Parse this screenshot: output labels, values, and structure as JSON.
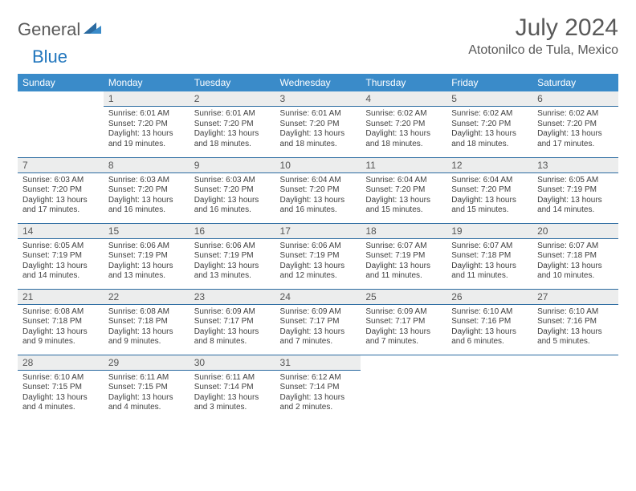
{
  "brand": {
    "general": "General",
    "blue": "Blue"
  },
  "title": "July 2024",
  "location": "Atotonilco de Tula, Mexico",
  "colors": {
    "header_bg": "#3a8bc9",
    "header_text": "#ffffff",
    "band_bg": "#eceded",
    "rule": "#2a6aa0",
    "title_text": "#595959",
    "body_text": "#404040",
    "logo_gray": "#595959",
    "logo_blue": "#2176bd"
  },
  "weekdays": [
    "Sunday",
    "Monday",
    "Tuesday",
    "Wednesday",
    "Thursday",
    "Friday",
    "Saturday"
  ],
  "weeks": [
    [
      {
        "n": "",
        "sr": "",
        "ss": "",
        "dl": ""
      },
      {
        "n": "1",
        "sr": "6:01 AM",
        "ss": "7:20 PM",
        "dl": "13 hours and 19 minutes."
      },
      {
        "n": "2",
        "sr": "6:01 AM",
        "ss": "7:20 PM",
        "dl": "13 hours and 18 minutes."
      },
      {
        "n": "3",
        "sr": "6:01 AM",
        "ss": "7:20 PM",
        "dl": "13 hours and 18 minutes."
      },
      {
        "n": "4",
        "sr": "6:02 AM",
        "ss": "7:20 PM",
        "dl": "13 hours and 18 minutes."
      },
      {
        "n": "5",
        "sr": "6:02 AM",
        "ss": "7:20 PM",
        "dl": "13 hours and 18 minutes."
      },
      {
        "n": "6",
        "sr": "6:02 AM",
        "ss": "7:20 PM",
        "dl": "13 hours and 17 minutes."
      }
    ],
    [
      {
        "n": "7",
        "sr": "6:03 AM",
        "ss": "7:20 PM",
        "dl": "13 hours and 17 minutes."
      },
      {
        "n": "8",
        "sr": "6:03 AM",
        "ss": "7:20 PM",
        "dl": "13 hours and 16 minutes."
      },
      {
        "n": "9",
        "sr": "6:03 AM",
        "ss": "7:20 PM",
        "dl": "13 hours and 16 minutes."
      },
      {
        "n": "10",
        "sr": "6:04 AM",
        "ss": "7:20 PM",
        "dl": "13 hours and 16 minutes."
      },
      {
        "n": "11",
        "sr": "6:04 AM",
        "ss": "7:20 PM",
        "dl": "13 hours and 15 minutes."
      },
      {
        "n": "12",
        "sr": "6:04 AM",
        "ss": "7:20 PM",
        "dl": "13 hours and 15 minutes."
      },
      {
        "n": "13",
        "sr": "6:05 AM",
        "ss": "7:19 PM",
        "dl": "13 hours and 14 minutes."
      }
    ],
    [
      {
        "n": "14",
        "sr": "6:05 AM",
        "ss": "7:19 PM",
        "dl": "13 hours and 14 minutes."
      },
      {
        "n": "15",
        "sr": "6:06 AM",
        "ss": "7:19 PM",
        "dl": "13 hours and 13 minutes."
      },
      {
        "n": "16",
        "sr": "6:06 AM",
        "ss": "7:19 PM",
        "dl": "13 hours and 13 minutes."
      },
      {
        "n": "17",
        "sr": "6:06 AM",
        "ss": "7:19 PM",
        "dl": "13 hours and 12 minutes."
      },
      {
        "n": "18",
        "sr": "6:07 AM",
        "ss": "7:19 PM",
        "dl": "13 hours and 11 minutes."
      },
      {
        "n": "19",
        "sr": "6:07 AM",
        "ss": "7:18 PM",
        "dl": "13 hours and 11 minutes."
      },
      {
        "n": "20",
        "sr": "6:07 AM",
        "ss": "7:18 PM",
        "dl": "13 hours and 10 minutes."
      }
    ],
    [
      {
        "n": "21",
        "sr": "6:08 AM",
        "ss": "7:18 PM",
        "dl": "13 hours and 9 minutes."
      },
      {
        "n": "22",
        "sr": "6:08 AM",
        "ss": "7:18 PM",
        "dl": "13 hours and 9 minutes."
      },
      {
        "n": "23",
        "sr": "6:09 AM",
        "ss": "7:17 PM",
        "dl": "13 hours and 8 minutes."
      },
      {
        "n": "24",
        "sr": "6:09 AM",
        "ss": "7:17 PM",
        "dl": "13 hours and 7 minutes."
      },
      {
        "n": "25",
        "sr": "6:09 AM",
        "ss": "7:17 PM",
        "dl": "13 hours and 7 minutes."
      },
      {
        "n": "26",
        "sr": "6:10 AM",
        "ss": "7:16 PM",
        "dl": "13 hours and 6 minutes."
      },
      {
        "n": "27",
        "sr": "6:10 AM",
        "ss": "7:16 PM",
        "dl": "13 hours and 5 minutes."
      }
    ],
    [
      {
        "n": "28",
        "sr": "6:10 AM",
        "ss": "7:15 PM",
        "dl": "13 hours and 4 minutes."
      },
      {
        "n": "29",
        "sr": "6:11 AM",
        "ss": "7:15 PM",
        "dl": "13 hours and 4 minutes."
      },
      {
        "n": "30",
        "sr": "6:11 AM",
        "ss": "7:14 PM",
        "dl": "13 hours and 3 minutes."
      },
      {
        "n": "31",
        "sr": "6:12 AM",
        "ss": "7:14 PM",
        "dl": "13 hours and 2 minutes."
      },
      {
        "n": "",
        "sr": "",
        "ss": "",
        "dl": ""
      },
      {
        "n": "",
        "sr": "",
        "ss": "",
        "dl": ""
      },
      {
        "n": "",
        "sr": "",
        "ss": "",
        "dl": ""
      }
    ]
  ],
  "labels": {
    "sunrise": "Sunrise: ",
    "sunset": "Sunset: ",
    "daylight": "Daylight: "
  }
}
